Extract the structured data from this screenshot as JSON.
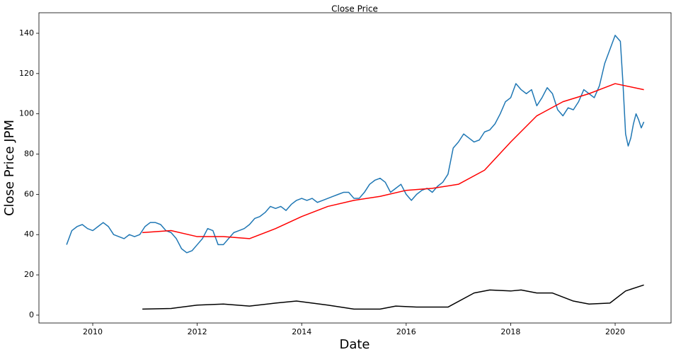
{
  "chart_data": {
    "type": "line",
    "title": "Close Price",
    "x_label": "Date",
    "y_label": "Close Price JPM",
    "xlim": [
      2008.97,
      2021.07
    ],
    "xticks": [
      2010,
      2012,
      2014,
      2016,
      2018,
      2020
    ],
    "ylim": [
      -3.9,
      150.2
    ],
    "yticks": [
      0,
      20,
      40,
      60,
      80,
      100,
      120,
      140
    ],
    "grid": false,
    "series": [
      {
        "color": "#1f77b4",
        "x": [
          2009.5,
          2009.6,
          2009.7,
          2009.8,
          2009.9,
          2010.0,
          2010.1,
          2010.2,
          2010.3,
          2010.4,
          2010.5,
          2010.6,
          2010.7,
          2010.8,
          2010.9,
          2011.0,
          2011.1,
          2011.2,
          2011.3,
          2011.4,
          2011.5,
          2011.6,
          2011.7,
          2011.8,
          2011.9,
          2012.0,
          2012.1,
          2012.2,
          2012.3,
          2012.4,
          2012.5,
          2012.6,
          2012.7,
          2012.8,
          2012.9,
          2013.0,
          2013.1,
          2013.2,
          2013.3,
          2013.4,
          2013.5,
          2013.6,
          2013.7,
          2013.8,
          2013.9,
          2014.0,
          2014.1,
          2014.2,
          2014.3,
          2014.4,
          2014.5,
          2014.6,
          2014.7,
          2014.8,
          2014.9,
          2015.0,
          2015.1,
          2015.2,
          2015.3,
          2015.4,
          2015.5,
          2015.6,
          2015.7,
          2015.8,
          2015.9,
          2016.0,
          2016.1,
          2016.2,
          2016.3,
          2016.4,
          2016.5,
          2016.6,
          2016.7,
          2016.8,
          2016.9,
          2017.0,
          2017.1,
          2017.2,
          2017.3,
          2017.4,
          2017.5,
          2017.6,
          2017.7,
          2017.8,
          2017.9,
          2018.0,
          2018.1,
          2018.2,
          2018.3,
          2018.4,
          2018.5,
          2018.6,
          2018.7,
          2018.8,
          2018.9,
          2019.0,
          2019.1,
          2019.2,
          2019.3,
          2019.4,
          2019.5,
          2019.6,
          2019.7,
          2019.8,
          2019.9,
          2020.0,
          2020.1,
          2020.15,
          2020.2,
          2020.25,
          2020.3,
          2020.35,
          2020.4,
          2020.45,
          2020.5,
          2020.55
        ],
        "values": [
          35,
          42,
          44,
          45,
          43,
          42,
          44,
          46,
          44,
          40,
          39,
          38,
          40,
          39,
          40,
          44,
          46,
          46,
          45,
          42,
          41,
          38,
          33,
          31,
          32,
          35,
          38,
          43,
          42,
          35,
          35,
          38,
          41,
          42,
          43,
          45,
          48,
          49,
          51,
          54,
          53,
          54,
          52,
          55,
          57,
          58,
          57,
          58,
          56,
          57,
          58,
          59,
          60,
          61,
          61,
          58,
          58,
          61,
          65,
          67,
          68,
          66,
          61,
          63,
          65,
          60,
          57,
          60,
          62,
          63,
          61,
          64,
          66,
          70,
          83,
          86,
          90,
          88,
          86,
          87,
          91,
          92,
          95,
          100,
          106,
          108,
          115,
          112,
          110,
          112,
          104,
          108,
          113,
          110,
          102,
          99,
          103,
          102,
          106,
          112,
          110,
          108,
          114,
          125,
          132,
          139,
          136,
          115,
          90,
          84,
          88,
          95,
          100,
          97,
          93,
          96
        ]
      },
      {
        "color": "#ff0000",
        "x": [
          2010.95,
          2011.5,
          2012.0,
          2012.5,
          2013.0,
          2013.5,
          2014.0,
          2014.5,
          2015.0,
          2015.5,
          2016.0,
          2016.5,
          2017.0,
          2017.5,
          2018.0,
          2018.5,
          2019.0,
          2019.5,
          2020.0,
          2020.55
        ],
        "values": [
          41,
          42,
          39,
          39,
          38,
          43,
          49,
          54,
          57,
          59,
          62,
          63,
          65,
          72,
          86,
          99,
          106,
          110,
          115,
          112
        ]
      },
      {
        "color": "#000000",
        "x": [
          2010.95,
          2011.5,
          2012.0,
          2012.5,
          2013.0,
          2013.5,
          2013.9,
          2014.5,
          2015.0,
          2015.5,
          2015.8,
          2016.2,
          2016.8,
          2017.3,
          2017.6,
          2018.0,
          2018.2,
          2018.5,
          2018.8,
          2019.2,
          2019.5,
          2019.9,
          2020.2,
          2020.55
        ],
        "values": [
          3,
          3.3,
          5,
          5.5,
          4.5,
          6,
          7,
          5,
          3,
          3,
          4.5,
          4,
          4,
          11,
          12.5,
          12,
          12.5,
          11,
          11,
          7,
          5.5,
          6,
          12,
          15
        ]
      }
    ]
  }
}
